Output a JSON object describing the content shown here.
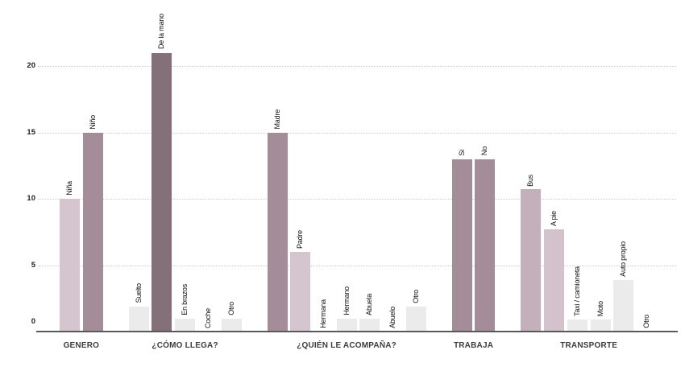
{
  "chart_data": {
    "type": "bar",
    "title": "",
    "xlabel": "",
    "ylabel": "",
    "ylim": [
      0,
      22
    ],
    "yticks": [
      0,
      5,
      10,
      15,
      20
    ],
    "grid": "horizontal-dotted",
    "legend": "none",
    "groups": [
      {
        "label": "GENERO",
        "bars": [
          {
            "label": "Niña",
            "value": 10,
            "color": "#d5c5ce"
          },
          {
            "label": "Niño",
            "value": 15,
            "color": "#a58c99"
          }
        ]
      },
      {
        "label": "¿CÓMO LLEGA?",
        "bars": [
          {
            "label": "Suelto",
            "value": 1.9,
            "color": "#ebebeb"
          },
          {
            "label": "De la mano",
            "value": 21,
            "color": "#847079"
          },
          {
            "label": "En brazos",
            "value": 1,
            "color": "#ebebeb"
          },
          {
            "label": "Coche",
            "value": 0,
            "color": "#ebebeb"
          },
          {
            "label": "Otro",
            "value": 1,
            "color": "#ebebeb"
          }
        ]
      },
      {
        "label": "¿QUIÉN LE ACOMPAÑA?",
        "bars": [
          {
            "label": "Madre",
            "value": 15,
            "color": "#a58c99"
          },
          {
            "label": "Padre",
            "value": 6,
            "color": "#d5c5ce"
          },
          {
            "label": "Hermana",
            "value": 0,
            "color": "#ebebeb"
          },
          {
            "label": "Hermano",
            "value": 1,
            "color": "#ebebeb"
          },
          {
            "label": "Abuela",
            "value": 1,
            "color": "#ebebeb"
          },
          {
            "label": "Abuelo",
            "value": 0,
            "color": "#ebebeb"
          },
          {
            "label": "Otro",
            "value": 1.9,
            "color": "#ebebeb"
          }
        ]
      },
      {
        "label": "TRABAJA",
        "bars": [
          {
            "label": "Si",
            "value": 13,
            "color": "#a58c99"
          },
          {
            "label": "No",
            "value": 13,
            "color": "#a58c99"
          }
        ]
      },
      {
        "label": "TRANSPORTE",
        "bars": [
          {
            "label": "Bus",
            "value": 10.7,
            "color": "#c4b0bb"
          },
          {
            "label": "A pie",
            "value": 7.7,
            "color": "#d3c1cb"
          },
          {
            "label": "Taxi / camioneta",
            "value": 0.9,
            "color": "#ebebeb"
          },
          {
            "label": "Moto",
            "value": 0.9,
            "color": "#ebebeb"
          },
          {
            "label": "Auto propio",
            "value": 3.9,
            "color": "#ebebeb"
          },
          {
            "label": "Otro",
            "value": 0,
            "color": "#ebebeb"
          }
        ]
      }
    ],
    "colors": {
      "background": "#ffffff",
      "gridline": "#c9c9c9",
      "axis": "#595959",
      "tick_text": "#1f1f1f",
      "bar_label_text": "#111111",
      "category_text": "#3d3d3d"
    }
  }
}
